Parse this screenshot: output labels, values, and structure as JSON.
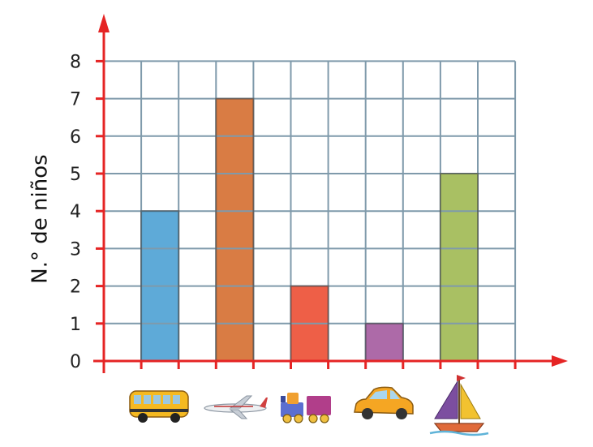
{
  "chart_data": {
    "type": "bar",
    "ylabel": "N.° de niños",
    "xlabel": "",
    "ylim": [
      0,
      8
    ],
    "yticks": [
      "0",
      "1",
      "2",
      "3",
      "4",
      "5",
      "6",
      "7",
      "8"
    ],
    "grid": true,
    "categories": [
      "bus",
      "airplane",
      "train",
      "car",
      "sailboat"
    ],
    "values": [
      4,
      7,
      2,
      1,
      5
    ],
    "colors": [
      "#5eaad8",
      "#d97c44",
      "#ee5f47",
      "#ad6aa8",
      "#a9c063"
    ],
    "category_icons": [
      "bus-icon",
      "airplane-icon",
      "train-icon",
      "car-icon",
      "sailboat-icon"
    ],
    "grid_color": "#7f9aab",
    "axis_color": "#e52424"
  }
}
